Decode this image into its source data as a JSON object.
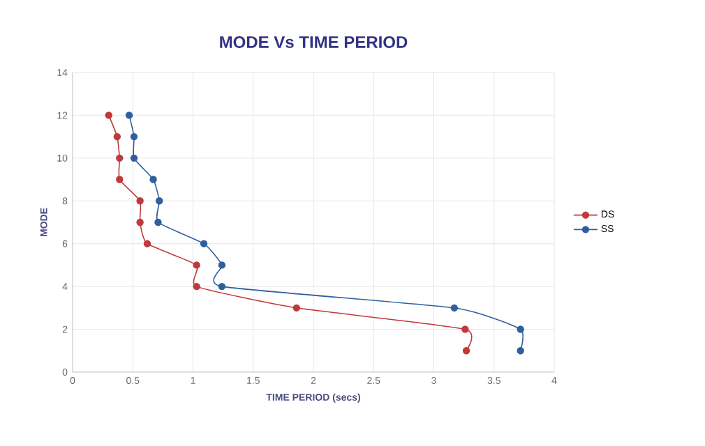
{
  "chart_data": {
    "type": "line",
    "title": "MODE Vs TIME PERIOD",
    "xlabel": "TIME PERIOD (secs)",
    "ylabel": "MODE",
    "xlim": [
      0,
      4
    ],
    "xticks": [
      0,
      0.5,
      1,
      1.5,
      2,
      2.5,
      3,
      3.5,
      4
    ],
    "ylim": [
      0,
      14
    ],
    "yticks": [
      0,
      2,
      4,
      6,
      8,
      10,
      12,
      14
    ],
    "grid": true,
    "legend": "right",
    "marker": "circle",
    "line_style": "solid",
    "series": [
      {
        "name": "DS",
        "color": "#c0393b",
        "x": [
          0.3,
          0.37,
          0.39,
          0.39,
          0.56,
          0.56,
          0.62,
          1.03,
          1.03,
          1.86,
          3.26,
          3.27
        ],
        "values": [
          12,
          11,
          10,
          9,
          8,
          7,
          6,
          5,
          4,
          3,
          2,
          1
        ]
      },
      {
        "name": "SS",
        "color": "#2f5f9e",
        "x": [
          0.47,
          0.51,
          0.51,
          0.67,
          0.72,
          0.71,
          1.09,
          1.24,
          1.24,
          3.17,
          3.72,
          3.72
        ],
        "values": [
          12,
          11,
          10,
          9,
          8,
          7,
          6,
          5,
          4,
          3,
          2,
          1
        ]
      }
    ]
  }
}
